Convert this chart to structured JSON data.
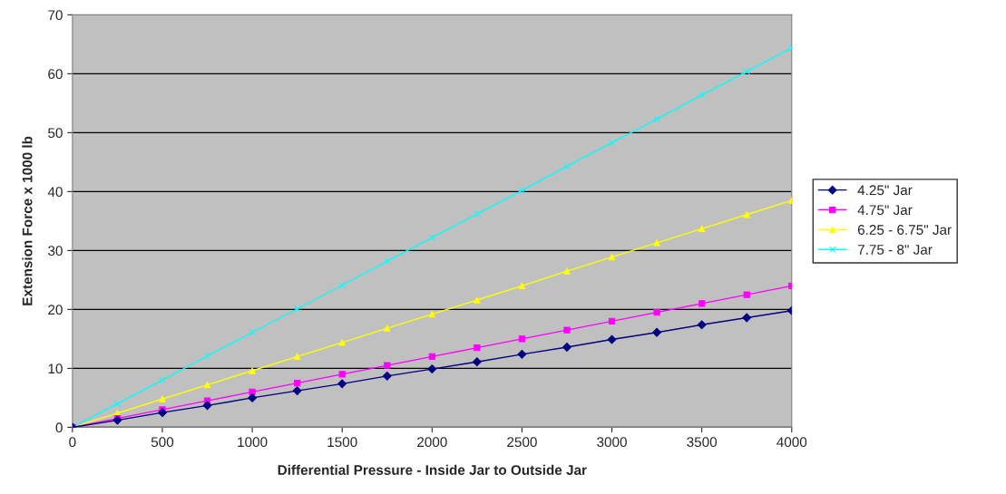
{
  "chart_data": {
    "type": "line",
    "xlabel": "Differential Pressure - Inside Jar to Outside Jar",
    "ylabel": "Extension Force x 1000 lb",
    "x": [
      0,
      250,
      500,
      750,
      1000,
      1250,
      1500,
      1750,
      2000,
      2250,
      2500,
      2750,
      3000,
      3250,
      3500,
      3750,
      4000
    ],
    "series": [
      {
        "name": "4.25\" Jar",
        "color": "#000080",
        "marker": "diamond",
        "values": [
          0,
          1.2,
          2.5,
          3.7,
          5.0,
          6.2,
          7.4,
          8.7,
          9.9,
          11.1,
          12.4,
          13.6,
          14.9,
          16.1,
          17.4,
          18.6,
          19.8
        ]
      },
      {
        "name": "4.75\" Jar",
        "color": "#ff00ff",
        "marker": "square",
        "values": [
          0,
          1.5,
          3,
          4.5,
          6,
          7.5,
          9,
          10.5,
          12,
          13.5,
          15,
          16.5,
          18,
          19.5,
          21,
          22.5,
          24
        ]
      },
      {
        "name": "6.25 - 6.75\" Jar",
        "color": "#ffff00",
        "marker": "triangle",
        "values": [
          0,
          2.4,
          4.8,
          7.2,
          9.6,
          12,
          14.4,
          16.8,
          19.2,
          21.6,
          24,
          26.5,
          28.9,
          31.3,
          33.7,
          36.1,
          38.5
        ]
      },
      {
        "name": "7.75 - 8\" Jar",
        "color": "#00ffff",
        "marker": "cross",
        "values": [
          0,
          4,
          8,
          12.1,
          16.1,
          20.1,
          24.1,
          28.2,
          32.2,
          36.2,
          40.2,
          44.3,
          48.3,
          52.3,
          56.4,
          60.4,
          64.4
        ]
      }
    ],
    "xlim": [
      0,
      4000
    ],
    "xticks": [
      0,
      500,
      1000,
      1500,
      2000,
      2500,
      3000,
      3500,
      4000
    ],
    "ylim": [
      0,
      70
    ],
    "yticks": [
      0,
      10,
      20,
      30,
      40,
      50,
      60,
      70
    ],
    "grid": "y",
    "legend": "right"
  }
}
